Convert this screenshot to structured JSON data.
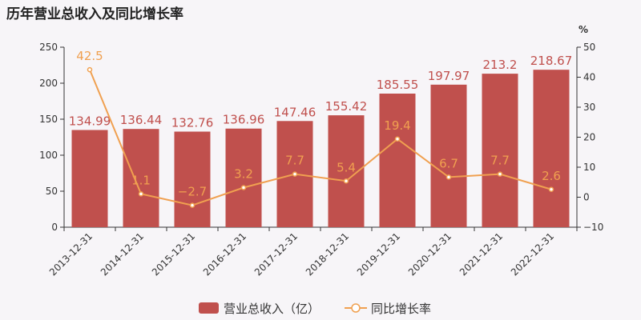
{
  "chart_data": {
    "type": "bar",
    "title": "历年营业总收入及同比增长率",
    "categories": [
      "2013-12-31",
      "2014-12-31",
      "2015-12-31",
      "2016-12-31",
      "2017-12-31",
      "2018-12-31",
      "2019-12-31",
      "2020-12-31",
      "2021-12-31",
      "2022-12-31"
    ],
    "series": [
      {
        "name": "营业总收入（亿）",
        "type": "bar",
        "axis": "left",
        "values": [
          134.99,
          136.44,
          132.76,
          136.96,
          147.46,
          155.42,
          185.55,
          197.97,
          213.2,
          218.67
        ],
        "labels": [
          "134.99",
          "136.44",
          "132.76",
          "136.96",
          "147.46",
          "155.42",
          "185.55",
          "197.97",
          "213.2",
          "218.67"
        ]
      },
      {
        "name": "同比增长率",
        "type": "line",
        "axis": "right",
        "values": [
          42.5,
          1.1,
          -2.7,
          3.2,
          7.7,
          5.4,
          19.4,
          6.7,
          7.7,
          2.6
        ],
        "labels": [
          "42.5",
          "1.1",
          "−2.7",
          "3.2",
          "7.7",
          "5.4",
          "19.4",
          "6.7",
          "7.7",
          "2.6"
        ]
      }
    ],
    "y_left": {
      "min": 0,
      "max": 250,
      "ticks": [
        "0",
        "50",
        "100",
        "150",
        "200",
        "250"
      ]
    },
    "y_right": {
      "min": -10,
      "max": 50,
      "unit": "%",
      "ticks": [
        "−10",
        "0",
        "10",
        "20",
        "30",
        "40",
        "50"
      ]
    },
    "legend_position": "bottom-center",
    "colors": {
      "bar": "#c0504d",
      "line": "#f0a050",
      "axis": "#333333"
    }
  }
}
